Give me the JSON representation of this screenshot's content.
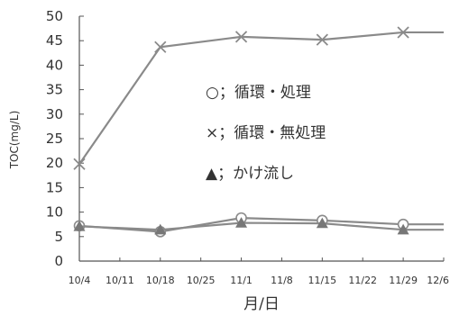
{
  "chart_data": {
    "type": "line",
    "ylabel": "TOC(mg/L)",
    "xlabel": "月/日",
    "ylim": [
      0,
      50
    ],
    "yticks": [
      0,
      5,
      10,
      15,
      20,
      25,
      30,
      35,
      40,
      45,
      50
    ],
    "grid": false,
    "legend_position": "center-right",
    "categories": [
      "10/4",
      "10/11",
      "10/18",
      "10/25",
      "11/1",
      "11/8",
      "11/15",
      "11/22",
      "11/29",
      "12/6"
    ],
    "series": [
      {
        "name": "○；循環・処理",
        "marker": "circle",
        "color": "#8a8a8a",
        "values": [
          7.2,
          null,
          6.0,
          null,
          8.8,
          null,
          8.3,
          null,
          7.5,
          7.5
        ]
      },
      {
        "name": "×；循環・無処理",
        "marker": "x",
        "color": "#8a8a8a",
        "values": [
          19.8,
          null,
          43.7,
          null,
          45.8,
          null,
          45.2,
          null,
          46.7,
          46.7
        ]
      },
      {
        "name": "▲；かけ流し",
        "marker": "triangle",
        "color": "#8a8a8a",
        "values": [
          7.1,
          null,
          6.4,
          null,
          7.8,
          null,
          7.7,
          null,
          6.4,
          6.4
        ]
      }
    ]
  }
}
